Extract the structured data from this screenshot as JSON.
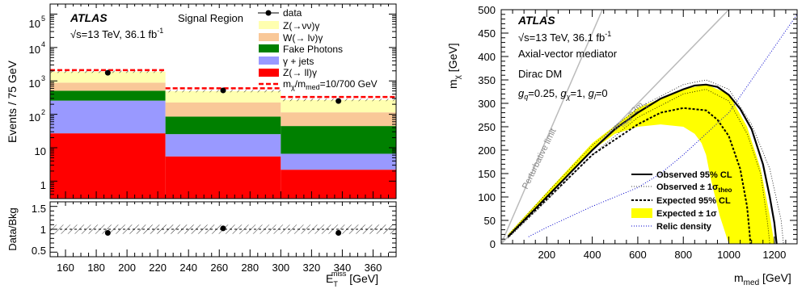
{
  "chart_data": [
    {
      "type": "bar",
      "panel": "stacked-histogram",
      "x_bins": [
        [
          150,
          225
        ],
        [
          225,
          300
        ],
        [
          300,
          375
        ]
      ],
      "series": [
        {
          "name": "Z(→ll)γ",
          "color": "#ff0000",
          "values": [
            27,
            5.5,
            2.2
          ]
        },
        {
          "name": "γ + jets",
          "color": "#9999ff",
          "values": [
            230,
            20,
            4.4
          ]
        },
        {
          "name": "Fake Photons",
          "color": "#008000",
          "values": [
            250,
            60,
            38
          ]
        },
        {
          "name": "W(→ lν)γ",
          "color": "#f9c898",
          "values": [
            380,
            140,
            70
          ]
        },
        {
          "name": "Z(→νν)γ",
          "color": "#ffffb0",
          "values": [
            1000,
            270,
            155
          ]
        }
      ],
      "data_points": {
        "name": "data",
        "x": [
          187.5,
          262.5,
          337.5
        ],
        "y": [
          1750,
          520,
          250
        ]
      },
      "signal": {
        "name": "mχ/mmed=10/700 GeV",
        "color": "#ff0000",
        "values": [
          2100,
          600,
          330
        ]
      },
      "ratio": {
        "ylabel": "Data/Bkg",
        "x": [
          187.5,
          262.5,
          337.5
        ],
        "y": [
          0.92,
          1.02,
          0.92
        ],
        "band": [
          0.9,
          1.1
        ],
        "ylim": [
          0.4,
          1.6
        ],
        "yticks": [
          "0.5",
          "1",
          "1.5"
        ]
      },
      "xlim": [
        150,
        375
      ],
      "xticks": [
        "160",
        "180",
        "200",
        "220",
        "240",
        "260",
        "280",
        "300",
        "320",
        "340",
        "360"
      ],
      "ylabel": "Events / 75 GeV",
      "xlabel": "E",
      "xlabel_sup": "miss",
      "xlabel_sub": "T",
      "xlabel_unit": " [GeV]",
      "yscale": "log",
      "ylim": [
        0.3,
        200000
      ],
      "ytick_labels": {
        "t1": "1",
        "t10": "10",
        "t100": "10",
        "t1k": "10",
        "t10k": "10",
        "t100k": "10"
      },
      "ytick_exps": {
        "t100": "2",
        "t1k": "3",
        "t10k": "4",
        "t100k": "5"
      },
      "experiment": "ATLAS",
      "energy_text": "√s=13 TeV, 36.1 fb",
      "energy_exp": "-1",
      "region_text": "Signal Region",
      "legend": [
        "data",
        "Z(→νν)γ",
        "W(→ lν)γ",
        "Fake Photons",
        "γ + jets",
        "Z(→ ll)γ",
        "mχ/mmed=10/700 GeV"
      ],
      "legend_placement": "top-right"
    },
    {
      "type": "line",
      "panel": "exclusion-contour",
      "xlabel": "m",
      "xlabel_sub": "med",
      "xlabel_unit": " [GeV]",
      "ylabel": "m",
      "ylabel_sub": "χ",
      "ylabel_unit": " [GeV]",
      "xlim": [
        0,
        1300
      ],
      "ylim": [
        0,
        500
      ],
      "xticks": [
        "200",
        "400",
        "600",
        "800",
        "1000",
        "1200"
      ],
      "yticks": [
        "0",
        "50",
        "100",
        "150",
        "200",
        "250",
        "300",
        "350",
        "400",
        "450",
        "500"
      ],
      "experiment": "ATLAS",
      "energy_text": "√s=13 TeV, 36.1 fb",
      "energy_exp": "-1",
      "model_line1": "Axial-vector mediator",
      "model_line2": "Dirac DM",
      "couplings": {
        "g": "g",
        "q": "q",
        "gq": "=0.25, ",
        "chi": "χ",
        "gchi": "=1, ",
        "l": "l",
        "gl": "=0"
      },
      "annotations": {
        "perturbative": "Perturbative limit",
        "diag_m": "m",
        "diag_sub": "med",
        "diag_rest": "=2m",
        "diag_chi": "χ"
      },
      "observed": {
        "name": "Observed 95% CL",
        "x": [
          30,
          100,
          200,
          300,
          400,
          500,
          600,
          700,
          800,
          850,
          900,
          950,
          1000,
          1050,
          1100,
          1150,
          1180,
          1200,
          1210
        ],
        "y": [
          15,
          50,
          100,
          150,
          200,
          245,
          280,
          310,
          330,
          338,
          340,
          335,
          318,
          288,
          245,
          170,
          100,
          45,
          0
        ]
      },
      "observed_theo_up": {
        "x": [
          30,
          200,
          400,
          600,
          800,
          900,
          1000,
          1100,
          1180,
          1230,
          1240
        ],
        "y": [
          18,
          108,
          210,
          290,
          340,
          350,
          330,
          255,
          160,
          50,
          0
        ]
      },
      "observed_theo_down": {
        "x": [
          30,
          200,
          400,
          600,
          800,
          900,
          1000,
          1080,
          1140,
          1170,
          1180
        ],
        "y": [
          12,
          92,
          190,
          270,
          320,
          330,
          305,
          235,
          150,
          45,
          0
        ]
      },
      "expected": {
        "name": "Expected 95% CL",
        "x": [
          30,
          200,
          400,
          600,
          700,
          800,
          900,
          950,
          1000,
          1050,
          1080,
          1090,
          1095
        ],
        "y": [
          15,
          95,
          190,
          255,
          280,
          290,
          285,
          265,
          230,
          160,
          80,
          30,
          0
        ]
      },
      "expected_band_upper": {
        "x": [
          30,
          200,
          400,
          600,
          800,
          900,
          1000,
          1080,
          1140,
          1180,
          1200
        ],
        "y": [
          20,
          110,
          215,
          290,
          330,
          340,
          320,
          250,
          160,
          60,
          0
        ]
      },
      "expected_band_lower": {
        "x": [
          1000,
          960,
          920,
          900,
          880,
          850,
          800,
          700,
          600,
          500,
          400,
          200,
          30
        ],
        "y": [
          0,
          60,
          140,
          190,
          215,
          235,
          250,
          255,
          250,
          235,
          200,
          100,
          15
        ]
      },
      "relic_density": {
        "name": "Relic density",
        "x": [
          120,
          200,
          400,
          600,
          700,
          800,
          1000,
          1300
        ],
        "y": [
          15,
          35,
          80,
          120,
          150,
          190,
          280,
          490
        ]
      },
      "legend": [
        "Observed 95% CL",
        "Observed ± 1σtheo",
        "Expected 95% CL",
        "Expected ± 1σ",
        "Relic density"
      ],
      "legend_placement": "bottom-right"
    }
  ],
  "legend_text": {
    "data": "data",
    "znunu": "Z(→νν)γ",
    "wlnu": "W(→ lν)γ",
    "fake": "Fake Photons",
    "gjets": "γ + jets",
    "zll": "Z(→ ll)γ",
    "sig_m": "m",
    "sig_chi": "χ",
    "sig_mid": "/m",
    "sig_med": "med",
    "sig_val": "=10/700 GeV",
    "obs": "Observed 95% CL",
    "obs_theo": "Observed ± 1σ",
    "obs_theo_sub": "theo",
    "exp": "Expected 95% CL",
    "exp_band": "Expected ± 1σ",
    "relic": "Relic density"
  },
  "colors": {
    "yellow_band": "#ffff00",
    "relic": "#0000cc",
    "diag": "#bbbbbb"
  }
}
